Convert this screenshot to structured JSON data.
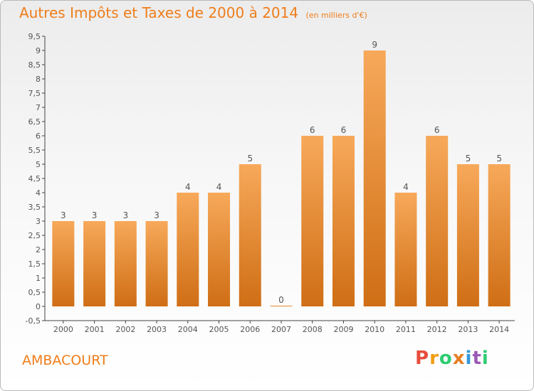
{
  "header": {
    "title": "Autres Impôts et Taxes de 2000 à 2014",
    "unit": "(en milliers d'€)"
  },
  "footer": {
    "commune": "AMBACOURT",
    "logo_letters": [
      "P",
      "r",
      "o",
      "x",
      "i",
      "t",
      "i"
    ]
  },
  "colors": {
    "accent": "#ef7d1a",
    "bar_light": "#f7a95a",
    "bar_dark": "#cf6e15",
    "logo": [
      "#e74c3c",
      "#f39c12",
      "#2ecc71",
      "#e67e22",
      "#3498db",
      "#9b59b6",
      "#2ecc71"
    ]
  },
  "chart_data": {
    "type": "bar",
    "title": "Autres Impôts et Taxes de 2000 à 2014",
    "subtitle": "(en milliers d'€)",
    "categories": [
      "2000",
      "2001",
      "2002",
      "2003",
      "2004",
      "2005",
      "2006",
      "2007",
      "2008",
      "2009",
      "2010",
      "2011",
      "2012",
      "2013",
      "2014"
    ],
    "values": [
      3,
      3,
      3,
      3,
      4,
      4,
      5,
      0,
      6,
      6,
      9,
      4,
      6,
      5,
      5
    ],
    "ylim": [
      -0.5,
      9.5
    ],
    "yticks": [
      "-0,5",
      "0",
      "0,5",
      "1",
      "1,5",
      "2",
      "2,5",
      "3",
      "3,5",
      "4",
      "4,5",
      "5",
      "5,5",
      "6",
      "6,5",
      "7",
      "7,5",
      "8",
      "8,5",
      "9",
      "9,5"
    ],
    "grid": false
  }
}
